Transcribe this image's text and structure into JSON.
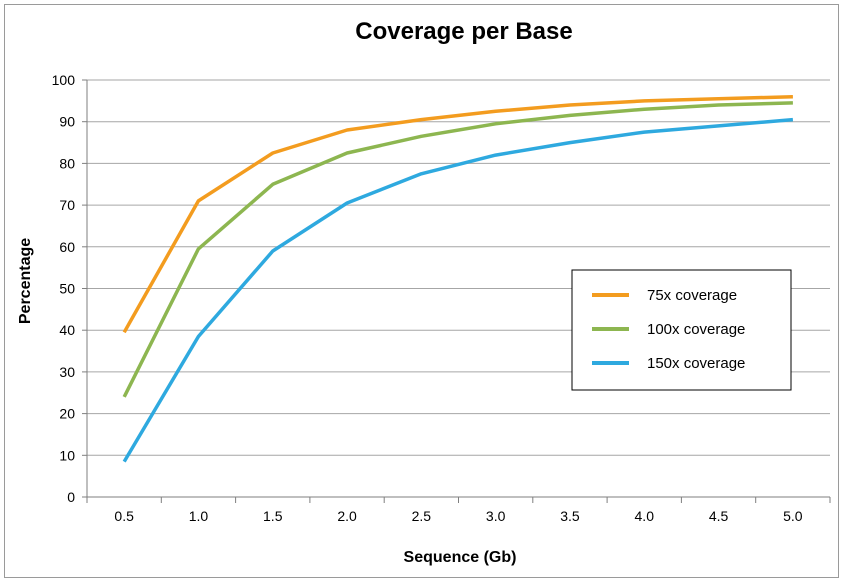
{
  "chart_data": {
    "type": "line",
    "title": "Coverage per Base",
    "xlabel": "Sequence (Gb)",
    "ylabel": "Percentage",
    "x": [
      0.5,
      1.0,
      1.5,
      2.0,
      2.5,
      3.0,
      3.5,
      4.0,
      4.5,
      5.0
    ],
    "x_tick_labels": [
      "0.5",
      "1.0",
      "1.5",
      "2.0",
      "2.5",
      "3.0",
      "3.5",
      "4.0",
      "4.5",
      "5.0"
    ],
    "y_ticks": [
      0,
      10,
      20,
      30,
      40,
      50,
      60,
      70,
      80,
      90,
      100
    ],
    "ylim": [
      0,
      100
    ],
    "grid": "horizontal",
    "legend_position": "right",
    "series": [
      {
        "name": "75x coverage",
        "color": "#F39C1F",
        "values": [
          39.5,
          71,
          82.5,
          88,
          90.5,
          92.5,
          94,
          95,
          95.5,
          96
        ]
      },
      {
        "name": "100x coverage",
        "color": "#8DB650",
        "values": [
          24,
          59.5,
          75,
          82.5,
          86.5,
          89.5,
          91.5,
          93,
          94,
          94.5
        ]
      },
      {
        "name": "150x coverage",
        "color": "#2EA9DF",
        "values": [
          8.5,
          38.5,
          59,
          70.5,
          77.5,
          82,
          85,
          87.5,
          89,
          90.5
        ]
      }
    ]
  }
}
